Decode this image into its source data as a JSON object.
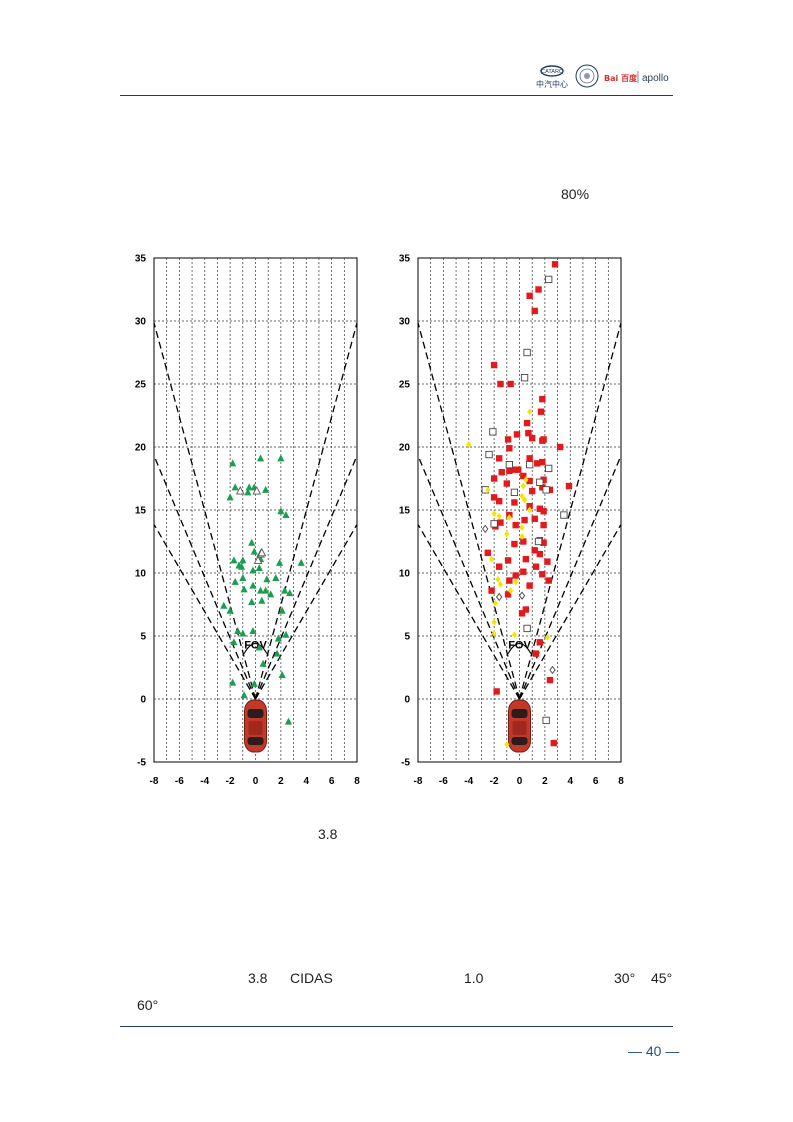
{
  "header": {
    "logo1": "中汽中心",
    "logo3": "Bai 百度",
    "logo4": "apollo"
  },
  "body": {
    "pct_text": "80%",
    "fig_caption_value": "3.8",
    "para_a": "3.8",
    "para_b": "CIDAS",
    "para_c": "1.0",
    "para_d": "30°",
    "para_e": "45°",
    "para_f": "60°"
  },
  "footer": {
    "page_number": "— 40 —"
  },
  "colors": {
    "rule": "#1f3a5f",
    "green": "#1a9e50",
    "red": "#e31a1c",
    "yellow": "#f2e600",
    "page_number": "#1f4e8c"
  },
  "chart_data": [
    {
      "type": "scatter",
      "xlim": [
        -8,
        8
      ],
      "ylim": [
        -5,
        35
      ],
      "xticks": [
        -8,
        -6,
        -4,
        -2,
        0,
        2,
        4,
        6,
        8
      ],
      "yticks": [
        -5,
        0,
        5,
        10,
        15,
        20,
        25,
        30,
        35
      ],
      "grid": true,
      "annotation": "FOV",
      "fov_half_angles_deg": [
        15,
        22.5,
        30
      ],
      "series": [
        {
          "marker": "filled-triangle",
          "color": "#1a9e50",
          "points": [
            [
              -1.8,
              18.7
            ],
            [
              0.4,
              19.1
            ],
            [
              2.0,
              19.1
            ],
            [
              -2.0,
              16.0
            ],
            [
              -1.6,
              16.8
            ],
            [
              0.8,
              16.6
            ],
            [
              -0.5,
              16.8
            ],
            [
              -0.1,
              16.8
            ],
            [
              -0.6,
              16.4
            ],
            [
              2.0,
              14.9
            ],
            [
              2.4,
              14.6
            ],
            [
              -1.0,
              11.0
            ],
            [
              -1.1,
              10.5
            ],
            [
              -1.7,
              11.0
            ],
            [
              -1.3,
              10.6
            ],
            [
              -0.3,
              12.4
            ],
            [
              -0.1,
              11.7
            ],
            [
              -0.2,
              10.2
            ],
            [
              0.4,
              11.1
            ],
            [
              0.3,
              10.4
            ],
            [
              1.9,
              10.8
            ],
            [
              3.6,
              10.8
            ],
            [
              -1.6,
              9.3
            ],
            [
              -1.0,
              9.6
            ],
            [
              0.9,
              9.5
            ],
            [
              1.6,
              9.6
            ],
            [
              -0.9,
              8.7
            ],
            [
              -0.2,
              9.0
            ],
            [
              0.4,
              8.6
            ],
            [
              1.2,
              8.3
            ],
            [
              2.3,
              8.6
            ],
            [
              2.7,
              8.4
            ],
            [
              -2.5,
              7.4
            ],
            [
              -2.0,
              7.0
            ],
            [
              -0.3,
              7.7
            ],
            [
              0.5,
              7.8
            ],
            [
              0.8,
              8.6
            ],
            [
              2.1,
              7.0
            ],
            [
              -1.4,
              5.4
            ],
            [
              -1.0,
              5.2
            ],
            [
              -0.2,
              5.4
            ],
            [
              0.3,
              4.1
            ],
            [
              1.8,
              4.8
            ],
            [
              2.4,
              5.1
            ],
            [
              -1.7,
              4.5
            ],
            [
              0.6,
              2.8
            ],
            [
              1.7,
              3.6
            ],
            [
              2.1,
              1.9
            ],
            [
              -1.8,
              1.3
            ],
            [
              -0.9,
              0.3
            ],
            [
              -0.1,
              1.2
            ],
            [
              2.6,
              -1.8
            ]
          ]
        },
        {
          "marker": "open-triangle",
          "color": "#555555",
          "points": [
            [
              -1.2,
              16.5
            ],
            [
              0.1,
              16.5
            ],
            [
              0.4,
              11.5
            ],
            [
              0.2,
              11.0
            ],
            [
              0.5,
              11.6
            ]
          ]
        }
      ]
    },
    {
      "type": "scatter",
      "xlim": [
        -8,
        8
      ],
      "ylim": [
        -5,
        35
      ],
      "xticks": [
        -8,
        -6,
        -4,
        -2,
        0,
        2,
        4,
        6,
        8
      ],
      "yticks": [
        -5,
        0,
        5,
        10,
        15,
        20,
        25,
        30,
        35
      ],
      "grid": true,
      "annotation": "FOV",
      "fov_half_angles_deg": [
        15,
        22.5,
        30
      ],
      "series": [
        {
          "marker": "filled-square",
          "color": "#e31a1c",
          "points": [
            [
              2.8,
              34.5
            ],
            [
              1.5,
              32.5
            ],
            [
              0.8,
              32.0
            ],
            [
              1.2,
              30.8
            ],
            [
              -2.0,
              26.5
            ],
            [
              -1.5,
              25.0
            ],
            [
              -0.7,
              25.0
            ],
            [
              1.8,
              23.8
            ],
            [
              1.7,
              22.8
            ],
            [
              0.6,
              21.9
            ],
            [
              0.7,
              21.1
            ],
            [
              -0.2,
              21.0
            ],
            [
              1.9,
              20.6
            ],
            [
              1.8,
              20.5
            ],
            [
              1.0,
              20.7
            ],
            [
              -0.9,
              20.6
            ],
            [
              -0.8,
              19.9
            ],
            [
              -1.6,
              19.1
            ],
            [
              3.2,
              20.0
            ],
            [
              0.8,
              19.1
            ],
            [
              1.8,
              18.8
            ],
            [
              1.4,
              18.7
            ],
            [
              -0.8,
              18.1
            ],
            [
              -0.5,
              18.2
            ],
            [
              -0.1,
              18.2
            ],
            [
              -1.4,
              18.0
            ],
            [
              -2.0,
              17.5
            ],
            [
              0.3,
              17.7
            ],
            [
              0.8,
              17.3
            ],
            [
              1.9,
              17.4
            ],
            [
              3.9,
              16.9
            ],
            [
              -1.0,
              17.1
            ],
            [
              1.0,
              16.5
            ],
            [
              1.8,
              16.8
            ],
            [
              2.4,
              16.6
            ],
            [
              -2.0,
              16.0
            ],
            [
              -1.6,
              15.7
            ],
            [
              -0.4,
              15.6
            ],
            [
              0.8,
              15.3
            ],
            [
              1.6,
              15.1
            ],
            [
              1.9,
              14.9
            ],
            [
              -1.5,
              14.0
            ],
            [
              -0.8,
              14.6
            ],
            [
              0.4,
              14.2
            ],
            [
              1.2,
              14.3
            ],
            [
              1.9,
              13.8
            ],
            [
              -1.9,
              13.7
            ],
            [
              -0.3,
              13.8
            ],
            [
              0.3,
              12.5
            ],
            [
              1.6,
              12.6
            ],
            [
              1.9,
              12.4
            ],
            [
              -2.5,
              11.6
            ],
            [
              -0.4,
              12.3
            ],
            [
              1.2,
              11.8
            ],
            [
              1.6,
              11.5
            ],
            [
              -0.9,
              11.0
            ],
            [
              0.5,
              11.1
            ],
            [
              2.2,
              10.9
            ],
            [
              -1.6,
              10.5
            ],
            [
              -0.3,
              9.8
            ],
            [
              0.3,
              10.1
            ],
            [
              1.3,
              10.5
            ],
            [
              -0.8,
              9.4
            ],
            [
              0.8,
              9.0
            ],
            [
              1.8,
              9.9
            ],
            [
              2.3,
              9.4
            ],
            [
              -2.2,
              8.6
            ],
            [
              -0.9,
              8.3
            ],
            [
              0.5,
              7.1
            ],
            [
              0.2,
              6.8
            ],
            [
              1.6,
              4.5
            ],
            [
              1.3,
              3.6
            ],
            [
              -1.8,
              0.6
            ],
            [
              2.4,
              1.5
            ],
            [
              2.7,
              -3.5
            ]
          ]
        },
        {
          "marker": "open-square",
          "color": "#444444",
          "points": [
            [
              2.3,
              33.3
            ],
            [
              0.6,
              27.5
            ],
            [
              0.4,
              25.5
            ],
            [
              -2.1,
              21.2
            ],
            [
              -2.4,
              19.4
            ],
            [
              -0.8,
              18.6
            ],
            [
              0.8,
              18.6
            ],
            [
              2.3,
              18.3
            ],
            [
              1.6,
              17.2
            ],
            [
              -2.7,
              16.6
            ],
            [
              -0.4,
              16.4
            ],
            [
              2.1,
              16.6
            ],
            [
              3.5,
              14.6
            ],
            [
              -2.0,
              13.9
            ],
            [
              1.5,
              12.5
            ],
            [
              0.6,
              5.6
            ],
            [
              2.1,
              -1.7
            ]
          ]
        },
        {
          "marker": "filled-diamond",
          "color": "#f2e600",
          "points": [
            [
              -4.0,
              20.2
            ],
            [
              0.8,
              22.8
            ],
            [
              0.5,
              17.4
            ],
            [
              0.3,
              16.9
            ],
            [
              -2.5,
              16.6
            ],
            [
              0.2,
              16.1
            ],
            [
              0.4,
              15.8
            ],
            [
              0.8,
              15.0
            ],
            [
              -2.0,
              14.7
            ],
            [
              -1.6,
              14.5
            ],
            [
              -0.8,
              14.4
            ],
            [
              0.2,
              13.6
            ],
            [
              -1.0,
              13.1
            ],
            [
              0.2,
              12.9
            ],
            [
              -2.2,
              11.1
            ],
            [
              -1.7,
              9.5
            ],
            [
              -1.5,
              9.1
            ],
            [
              -0.3,
              9.3
            ],
            [
              -0.7,
              8.6
            ],
            [
              -1.9,
              7.6
            ],
            [
              -2.0,
              6.1
            ],
            [
              -2.0,
              5.2
            ],
            [
              -0.4,
              5.1
            ],
            [
              2.2,
              4.9
            ],
            [
              -1.0,
              -3.6
            ]
          ]
        },
        {
          "marker": "open-diamond",
          "color": "#444444",
          "points": [
            [
              -2.7,
              13.5
            ],
            [
              0.2,
              8.2
            ],
            [
              -1.6,
              8.1
            ],
            [
              2.6,
              2.3
            ]
          ]
        }
      ]
    }
  ]
}
